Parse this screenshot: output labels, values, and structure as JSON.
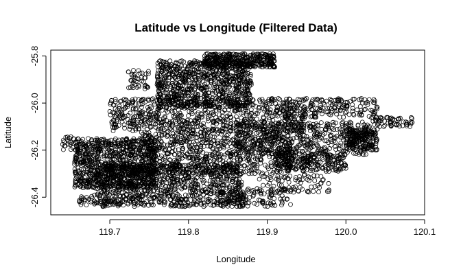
{
  "chart_data": {
    "type": "scatter",
    "title": "Latitude vs Longitude (Filtered Data)",
    "xlabel": "Longitude",
    "ylabel": "Latitude",
    "xlim": [
      119.625,
      120.1
    ],
    "ylim": [
      -26.475,
      -25.775
    ],
    "x_ticks": [
      119.7,
      119.8,
      119.9,
      120.0,
      120.1
    ],
    "x_tick_labels": [
      "119.7",
      "119.8",
      "119.9",
      "120.0",
      "120.1"
    ],
    "y_ticks": [
      -26.4,
      -26.2,
      -26.0,
      -25.8
    ],
    "y_tick_labels": [
      "-26.4",
      "-26.2",
      "-26.0",
      "-25.8"
    ],
    "marker": "open-circle",
    "point_color": "#000000",
    "grid": false,
    "legend": "none",
    "clusters": [
      {
        "x": [
          119.655,
          119.76
        ],
        "y": [
          -26.36,
          -26.15
        ],
        "n": 900
      },
      {
        "x": [
          119.68,
          119.87
        ],
        "y": [
          -26.44,
          -26.26
        ],
        "n": 900
      },
      {
        "x": [
          119.76,
          119.88
        ],
        "y": [
          -26.02,
          -25.82
        ],
        "n": 800
      },
      {
        "x": [
          119.82,
          119.91
        ],
        "y": [
          -25.85,
          -25.79
        ],
        "n": 350
      },
      {
        "x": [
          119.7,
          119.95
        ],
        "y": [
          -26.12,
          -25.98
        ],
        "n": 700
      },
      {
        "x": [
          119.74,
          119.93
        ],
        "y": [
          -26.3,
          -26.12
        ],
        "n": 700
      },
      {
        "x": [
          119.86,
          120.03
        ],
        "y": [
          -26.22,
          -26.08
        ],
        "n": 450
      },
      {
        "x": [
          119.91,
          120.0
        ],
        "y": [
          -26.29,
          -26.21
        ],
        "n": 250
      },
      {
        "x": [
          119.92,
          120.04
        ],
        "y": [
          -26.06,
          -25.98
        ],
        "n": 180
      },
      {
        "x": [
          120.0,
          120.04
        ],
        "y": [
          -26.2,
          -26.11
        ],
        "n": 180
      },
      {
        "x": [
          120.03,
          120.085
        ],
        "y": [
          -26.1,
          -26.06
        ],
        "n": 60
      },
      {
        "x": [
          119.64,
          119.66
        ],
        "y": [
          -26.2,
          -26.14
        ],
        "n": 25
      },
      {
        "x": [
          119.72,
          119.75
        ],
        "y": [
          -25.94,
          -25.86
        ],
        "n": 40
      },
      {
        "x": [
          119.66,
          119.74
        ],
        "y": [
          -26.44,
          -26.39
        ],
        "n": 60
      },
      {
        "x": [
          119.84,
          119.93
        ],
        "y": [
          -26.44,
          -26.36
        ],
        "n": 120
      },
      {
        "x": [
          119.89,
          119.98
        ],
        "y": [
          -26.38,
          -26.3
        ],
        "n": 80
      }
    ]
  }
}
